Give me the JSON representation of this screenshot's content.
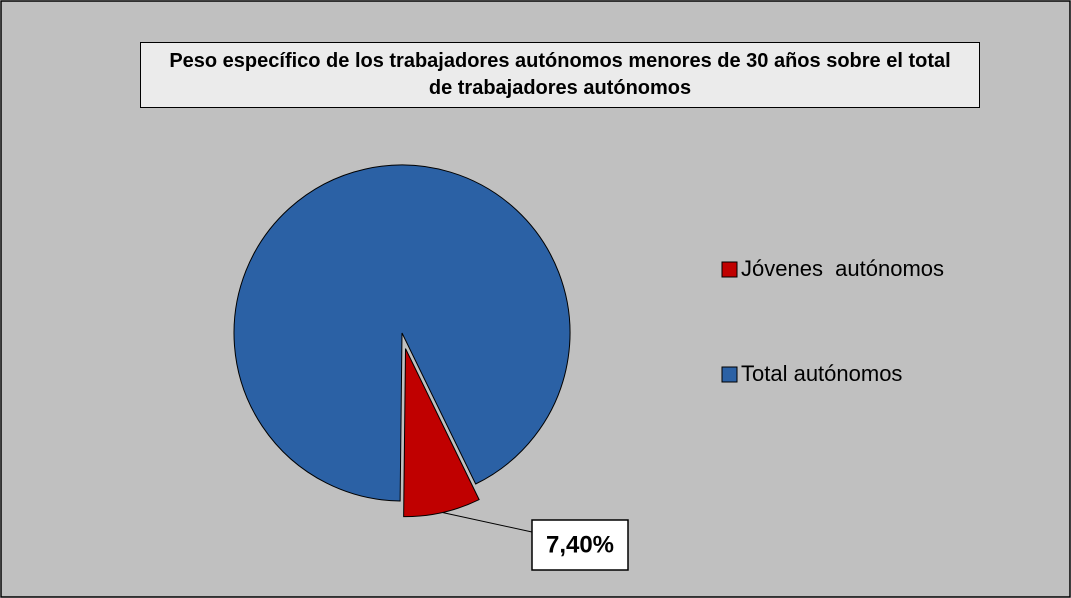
{
  "chart_data": {
    "type": "pie",
    "title": "Peso específico de los trabajadores autónomos menores de 30 años sobre el total de trabajadores autónomos",
    "categories": [
      "Jóvenes  autónomos",
      "Total autónomos"
    ],
    "values": [
      7.4,
      92.6
    ],
    "value_labels": [
      "7,40%",
      null
    ],
    "colors": [
      "#c00000",
      "#2b61a5"
    ],
    "legend": "right"
  }
}
